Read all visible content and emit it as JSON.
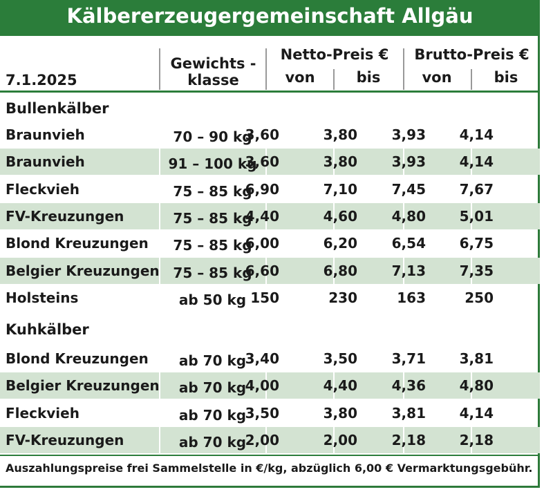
{
  "title": "Kälbererzeugergemeinschaft Allgäu",
  "date": "7.1.2025",
  "headers": {
    "weight_line1": "Gewichts -",
    "weight_line2": "klasse",
    "netto": "Netto-Preis €",
    "brutto": "Brutto-Preis €",
    "von": "von",
    "bis": "bis"
  },
  "sections": [
    {
      "name": "Bullenkälber",
      "rows": [
        {
          "name": "Braunvieh",
          "weight": "70 – 90 kg",
          "netto_von": "3,60",
          "netto_bis": "3,80",
          "brutto_von": "3,93",
          "brutto_bis": "4,14"
        },
        {
          "name": "Braunvieh",
          "weight": "91 – 100 kg",
          "netto_von": "3,60",
          "netto_bis": "3,80",
          "brutto_von": "3,93",
          "brutto_bis": "4,14"
        },
        {
          "name": "Fleckvieh",
          "weight": "75 – 85 kg",
          "netto_von": "6,90",
          "netto_bis": "7,10",
          "brutto_von": "7,45",
          "brutto_bis": "7,67"
        },
        {
          "name": "FV-Kreuzungen",
          "weight": "75 – 85 kg",
          "netto_von": "4,40",
          "netto_bis": "4,60",
          "brutto_von": "4,80",
          "brutto_bis": "5,01"
        },
        {
          "name": "Blond Kreuzungen",
          "weight": "75 – 85 kg",
          "netto_von": "6,00",
          "netto_bis": "6,20",
          "brutto_von": "6,54",
          "brutto_bis": "6,75"
        },
        {
          "name": "Belgier Kreuzungen",
          "weight": "75 – 85 kg",
          "netto_von": "6,60",
          "netto_bis": "6,80",
          "brutto_von": "7,13",
          "brutto_bis": "7,35"
        },
        {
          "name": "Holsteins",
          "weight": "ab 50 kg",
          "netto_von": "150",
          "netto_bis": "230",
          "brutto_von": "163",
          "brutto_bis": "250"
        }
      ]
    },
    {
      "name": "Kuhkälber",
      "rows": [
        {
          "name": "Blond Kreuzungen",
          "weight": "ab 70 kg",
          "netto_von": "3,40",
          "netto_bis": "3,50",
          "brutto_von": "3,71",
          "brutto_bis": "3,81"
        },
        {
          "name": "Belgier Kreuzungen",
          "weight": "ab 70 kg",
          "netto_von": "4,00",
          "netto_bis": "4,40",
          "brutto_von": "4,36",
          "brutto_bis": "4,80"
        },
        {
          "name": "Fleckvieh",
          "weight": "ab 70 kg",
          "netto_von": "3,50",
          "netto_bis": "3,80",
          "brutto_von": "3,81",
          "brutto_bis": "4,14"
        },
        {
          "name": "FV-Kreuzungen",
          "weight": "ab 70 kg",
          "netto_von": "2,00",
          "netto_bis": "2,00",
          "brutto_von": "2,18",
          "brutto_bis": "2,18"
        }
      ]
    }
  ],
  "footer": "Auszahlungspreise frei Sammelstelle in €/kg, abzüglich 6,00 € Vermarktungsgebühr.",
  "colors": {
    "brand_green": "#2b7d3a",
    "row_shade": "#d3e3d2"
  }
}
